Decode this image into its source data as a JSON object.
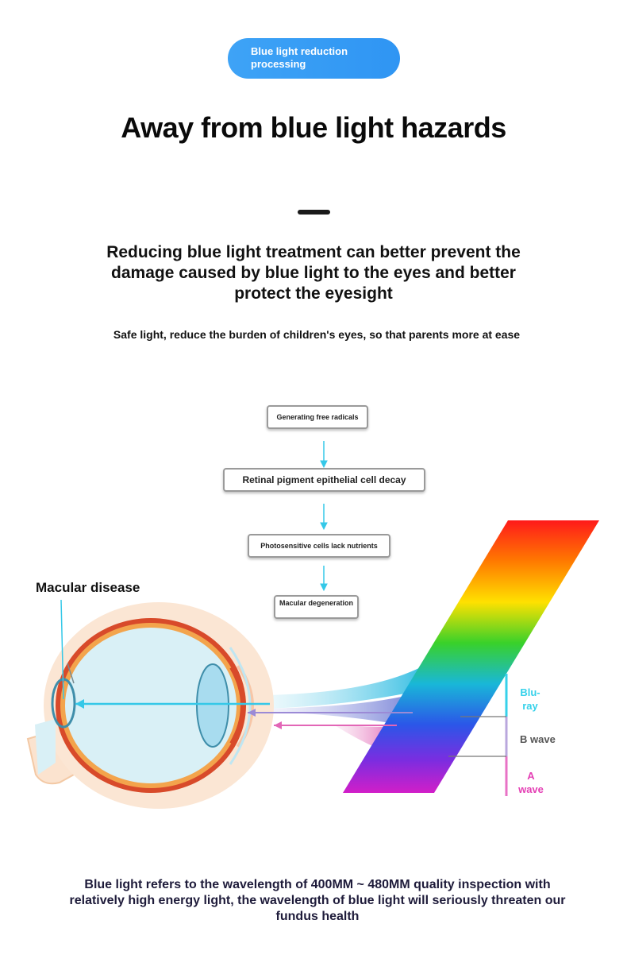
{
  "header": {
    "pill_label": "Blue light reduction processing",
    "title": "Away from blue light hazards",
    "subtitle": "Reducing blue light treatment can better prevent the damage caused by blue light to the eyes and better protect the eyesight",
    "tagline": "Safe light, reduce the burden of children's eyes, so that parents more at ease"
  },
  "flow": {
    "step1": "Generating free radicals",
    "step2": "Retinal pigment epithelial cell decay",
    "step3": "Photosensitive cells lack nutrients",
    "step4": "Macular degeneration"
  },
  "diagram": {
    "macular_label": "Macular disease",
    "blu_ray": "Blu-ray",
    "b_wave": "B wave",
    "a_wave": "A wave",
    "arrow_color": "#35c8e8"
  },
  "footer": {
    "text": "Blue light refers to the wavelength of 400MM ~ 480MM quality inspection with relatively high energy light, the wavelength of blue light will seriously threaten our fundus health"
  }
}
